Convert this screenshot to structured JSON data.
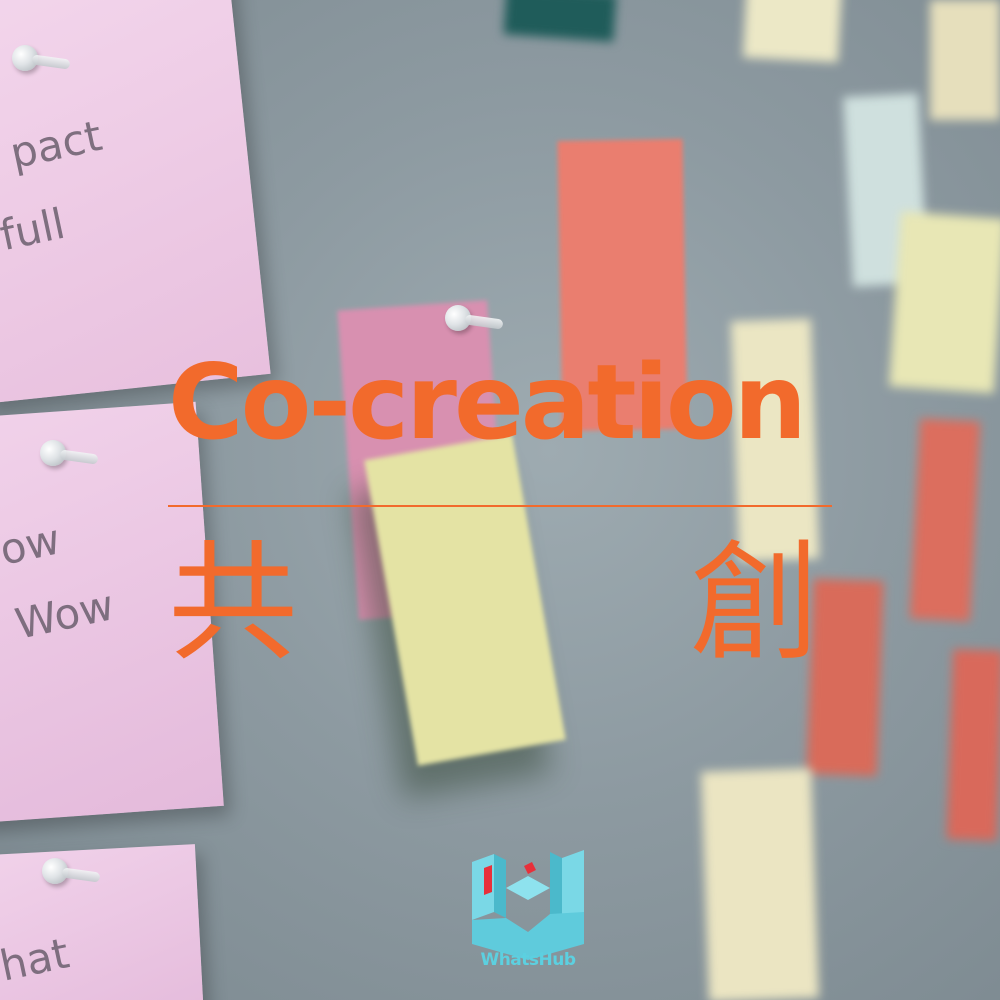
{
  "headline": "Co-creation",
  "subtitle_left": "共",
  "subtitle_right": "創",
  "logo": {
    "text": "WhatsHub"
  },
  "handwriting": {
    "note1_line1": "pact",
    "note1_line2": "full",
    "note2_line1": "ow",
    "note2_line2": "Wow",
    "note3_line1": "hat"
  },
  "colors": {
    "accent": "#f26a2c",
    "logo": "#5cd0e0",
    "board": "#8d9aa1"
  }
}
